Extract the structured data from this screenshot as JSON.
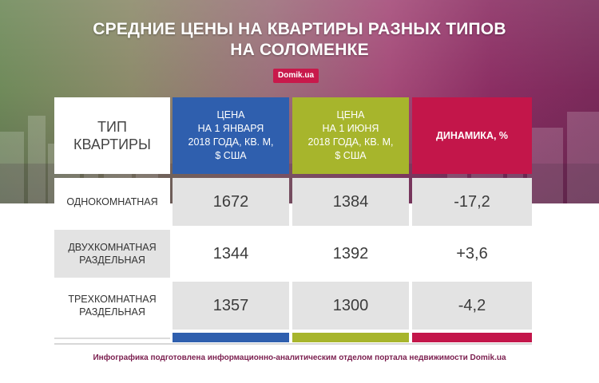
{
  "title": {
    "line1": "СРЕДНИЕ ЦЕНЫ НА КВАРТИРЫ РАЗНЫХ ТИПОВ",
    "line2": "НА СОЛОМЕНКЕ"
  },
  "badge": "Domik.ua",
  "headers": {
    "type": [
      "ТИП",
      "КВАРТИРЫ"
    ],
    "jan": [
      "ЦЕНА",
      "НА 1 ЯНВАРЯ",
      "2018 ГОДА, КВ. М,",
      "$ США"
    ],
    "jun": [
      "ЦЕНА",
      "НА 1 ИЮНЯ",
      "2018 ГОДА, КВ. М,",
      "$ США"
    ],
    "dynamics": "ДИНАМИКА, %"
  },
  "rows": [
    {
      "type": [
        "ОДНОКОМНАТНАЯ"
      ],
      "jan": "1672",
      "jun": "1384",
      "dynamics": "-17,2"
    },
    {
      "type": [
        "ДВУХКОМНАТНАЯ",
        "РАЗДЕЛЬНАЯ"
      ],
      "jan": "1344",
      "jun": "1392",
      "dynamics": "+3,6"
    },
    {
      "type": [
        "ТРЕХКОМНАТНАЯ",
        "РАЗДЕЛЬНАЯ"
      ],
      "jan": "1357",
      "jun": "1300",
      "dynamics": "-4,2"
    }
  ],
  "footer": "Инфографика подготовлена информационно-аналитическим отделом портала недвижимости Domik.ua",
  "colors": {
    "blue": "#2f5fae",
    "green": "#a7b52c",
    "red": "#c3164a"
  }
}
